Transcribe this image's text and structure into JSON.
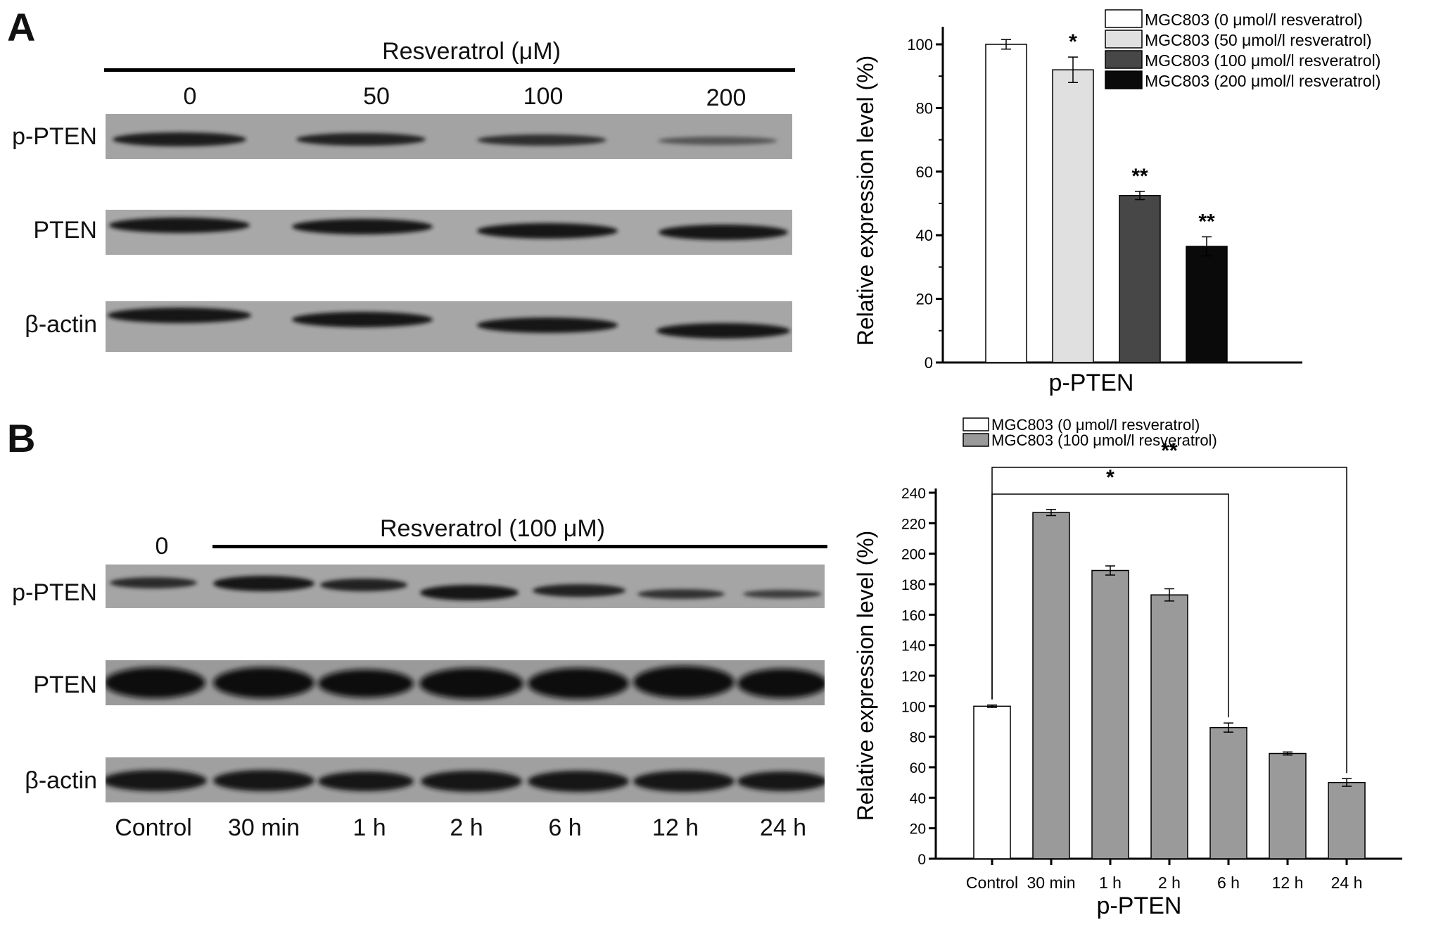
{
  "panelA": {
    "letter": "A",
    "treatment_label": "Resveratrol (μM)",
    "lanes": [
      "0",
      "50",
      "100",
      "200"
    ],
    "rows": [
      "p-PTEN",
      "PTEN",
      "β-actin"
    ]
  },
  "panelB": {
    "letter": "B",
    "zero_label": "0",
    "treatment_label": "Resveratrol (100 μM)",
    "rows": [
      "p-PTEN",
      "PTEN",
      "β-actin"
    ],
    "lanes": [
      "Control",
      "30 min",
      "1 h",
      "2 h",
      "6 h",
      "12 h",
      "24 h"
    ]
  },
  "chart_data": [
    {
      "type": "bar",
      "ylabel": "Relative expression level (%)",
      "xlabel": "p-PTEN",
      "ylim": [
        0,
        100
      ],
      "yticks": [
        0,
        20,
        40,
        60,
        80,
        100
      ],
      "legend_position": "top-right",
      "series": [
        {
          "name": "MGC803 (0 μmol/l resveratrol)",
          "value": 100,
          "error": 1.5,
          "sig": "",
          "color": "#ffffff"
        },
        {
          "name": "MGC803 (50 μmol/l resveratrol)",
          "value": 92,
          "error": 4,
          "sig": "*",
          "color": "#e0e0e0"
        },
        {
          "name": "MGC803 (100 μmol/l resveratrol)",
          "value": 52.5,
          "error": 1.3,
          "sig": "**",
          "color": "#474747"
        },
        {
          "name": "MGC803 (200 μmol/l resveratrol)",
          "value": 36.5,
          "error": 3,
          "sig": "**",
          "color": "#0a0a0a"
        }
      ]
    },
    {
      "type": "bar",
      "ylabel": "Relative expression level (%)",
      "xlabel": "p-PTEN",
      "ylim": [
        0,
        240
      ],
      "yticks": [
        0,
        20,
        40,
        60,
        80,
        100,
        120,
        140,
        160,
        180,
        200,
        220,
        240
      ],
      "categories": [
        "Control",
        "30 min",
        "1 h",
        "2 h",
        "6 h",
        "12 h",
        "24 h"
      ],
      "values": [
        100,
        227,
        189,
        173,
        86,
        69,
        50
      ],
      "errors": [
        0.8,
        2,
        3,
        4,
        3,
        1,
        2.5
      ],
      "legend_position": "top-left",
      "legend": [
        {
          "name": "MGC803 (0 μmol/l resveratrol)",
          "color": "#ffffff"
        },
        {
          "name": "MGC803 (100 μmol/l resveratrol)",
          "color": "#9a9a9a"
        }
      ],
      "bar_colors": [
        "#ffffff",
        "#9a9a9a",
        "#9a9a9a",
        "#9a9a9a",
        "#9a9a9a",
        "#9a9a9a",
        "#9a9a9a"
      ],
      "significance": [
        {
          "from": "Control",
          "to": "6 h",
          "label": "*"
        },
        {
          "from": "Control",
          "to": "24 h",
          "label": "**"
        }
      ]
    }
  ]
}
